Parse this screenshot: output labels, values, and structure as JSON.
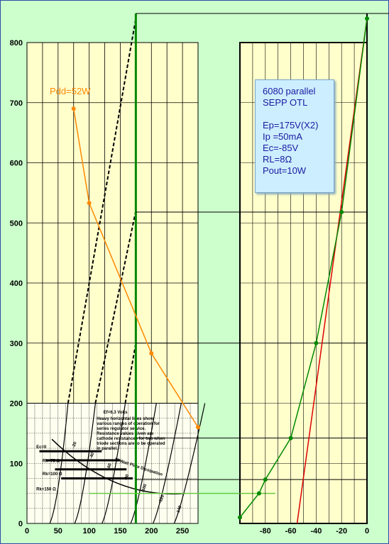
{
  "chart_data": [
    {
      "type": "line",
      "name": "plate-characteristics",
      "y_ticks": [
        "0",
        "100",
        "200",
        "300",
        "400",
        "500",
        "600",
        "700",
        "800"
      ],
      "x_ticks": [
        "0",
        "50",
        "100",
        "150",
        "200",
        "250"
      ],
      "ylim": [
        0,
        800
      ],
      "xlim": [
        0,
        275
      ],
      "series": [
        {
          "name": "Pdd=52W",
          "color": "#ff8800",
          "x": [
            75,
            100,
            200,
            275
          ],
          "y": [
            690,
            533,
            283,
            160
          ]
        }
      ],
      "load_line_ep": 175,
      "load_line_ip_ma": 50,
      "annotations": {
        "pdd_label": "Pdd=52W",
        "heater": "Ef=6.3 Volts",
        "note": "Heavy horizontal lines show various ranges of operation for series regulator service. Resistance values given are cathode resistances for two when triode sections are to be operated in parallel.",
        "rk_labels": [
          "Ec=0",
          "Rk=75 Ω",
          "Rk=100 Ω",
          "Rk=150 Ω"
        ],
        "grid_labels": [
          "-20",
          "-40",
          "-60",
          "-80",
          "-100",
          "-120",
          "-140"
        ],
        "dissipation": "13 Watt Plate Dissipation"
      }
    },
    {
      "type": "line",
      "name": "grid-transfer",
      "x_ticks": [
        "-80",
        "-60",
        "-40",
        "-20",
        "0"
      ],
      "xlim": [
        -100,
        0
      ],
      "ylim": [
        0,
        800
      ],
      "series": [
        {
          "name": "Ip-Ec",
          "color": "#008800",
          "x": [
            -100,
            -85,
            -80,
            -60,
            -40,
            -20,
            0
          ],
          "y": [
            10,
            50,
            73,
            142,
            300,
            518,
            840
          ]
        },
        {
          "name": "load",
          "color": "#dd0000",
          "x": [
            -55,
            0
          ],
          "y": [
            0,
            840
          ]
        }
      ]
    }
  ],
  "infobox": {
    "line1": "6080 parallel",
    "line2": "SEPP OTL",
    "line3": "Ep=175V(X2)",
    "line4": "Ip =50mA",
    "line5": "Ec=-85V",
    "line6": "RL=8Ω",
    "line7": "Pout=10W"
  },
  "colors": {
    "background": "#ccffcc",
    "plot": "#ffffcc",
    "grid": "#000000"
  }
}
